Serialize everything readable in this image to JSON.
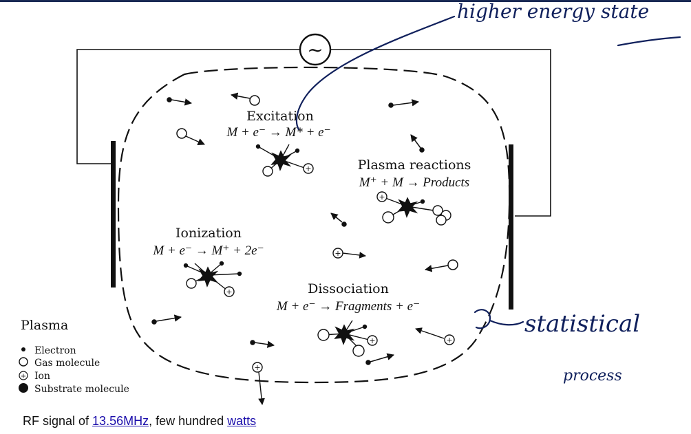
{
  "processes": {
    "excitation": {
      "title": "Excitation",
      "equation": "M + e⁻ → M* + e⁻"
    },
    "plasma_reactions": {
      "title": "Plasma reactions",
      "equation": "M⁺ + M → Products"
    },
    "ionization": {
      "title": "Ionization",
      "equation": "M + e⁻ → M⁺ + 2e⁻"
    },
    "dissociation": {
      "title": "Dissociation",
      "equation": "M + e⁻ → Fragments + e⁻"
    }
  },
  "legend": {
    "title": "Plasma",
    "items": [
      "Electron",
      "Gas molecule",
      "Ion",
      "Substrate molecule"
    ]
  },
  "source_symbol": "~",
  "ion_symbol": "+",
  "caption": {
    "prefix": "RF signal of ",
    "link1": "13.56MHz",
    "middle": ", few hundred ",
    "link2": "watts"
  },
  "annotations": {
    "higher_energy": "higher energy state",
    "statistical": "statistical",
    "process": "process"
  }
}
